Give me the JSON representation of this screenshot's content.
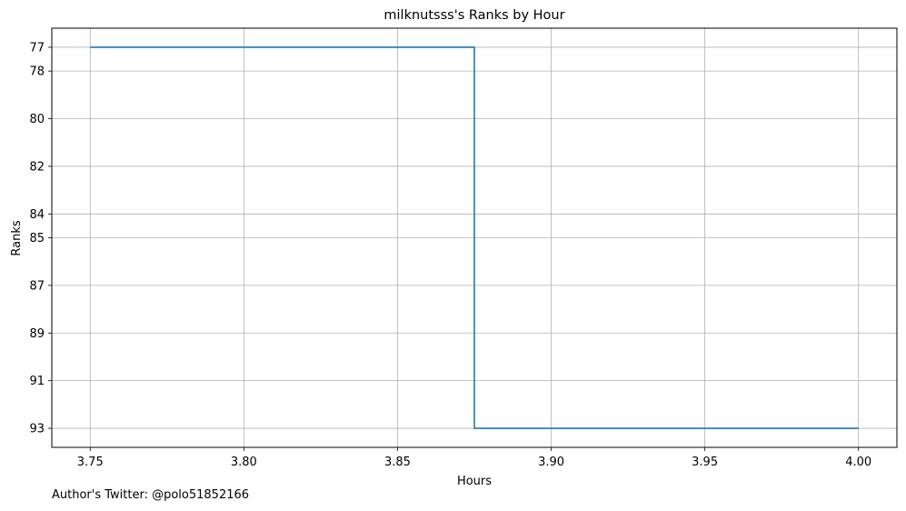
{
  "chart_data": {
    "type": "line",
    "step": "post",
    "title": "milknutsss's Ranks by Hour",
    "xlabel": "Hours",
    "ylabel": "Ranks",
    "x": [
      3.75,
      3.875,
      4.0
    ],
    "y": [
      77,
      93,
      93
    ],
    "xlim": [
      3.7375,
      4.0125
    ],
    "ylim": [
      93.8,
      76.2
    ],
    "y_inverted": true,
    "xticks": [
      3.75,
      3.8,
      3.85,
      3.9,
      3.95,
      4.0
    ],
    "xtick_labels": [
      "3.75",
      "3.80",
      "3.85",
      "3.90",
      "3.95",
      "4.00"
    ],
    "yticks": [
      77,
      78,
      80,
      82,
      84,
      85,
      87,
      89,
      91,
      93
    ],
    "ytick_labels": [
      "77",
      "78",
      "80",
      "82",
      "84",
      "85",
      "87",
      "89",
      "91",
      "93"
    ],
    "grid": true,
    "line_color": "#1f77b4"
  },
  "footer": {
    "note": "Author's Twitter: @polo51852166"
  }
}
